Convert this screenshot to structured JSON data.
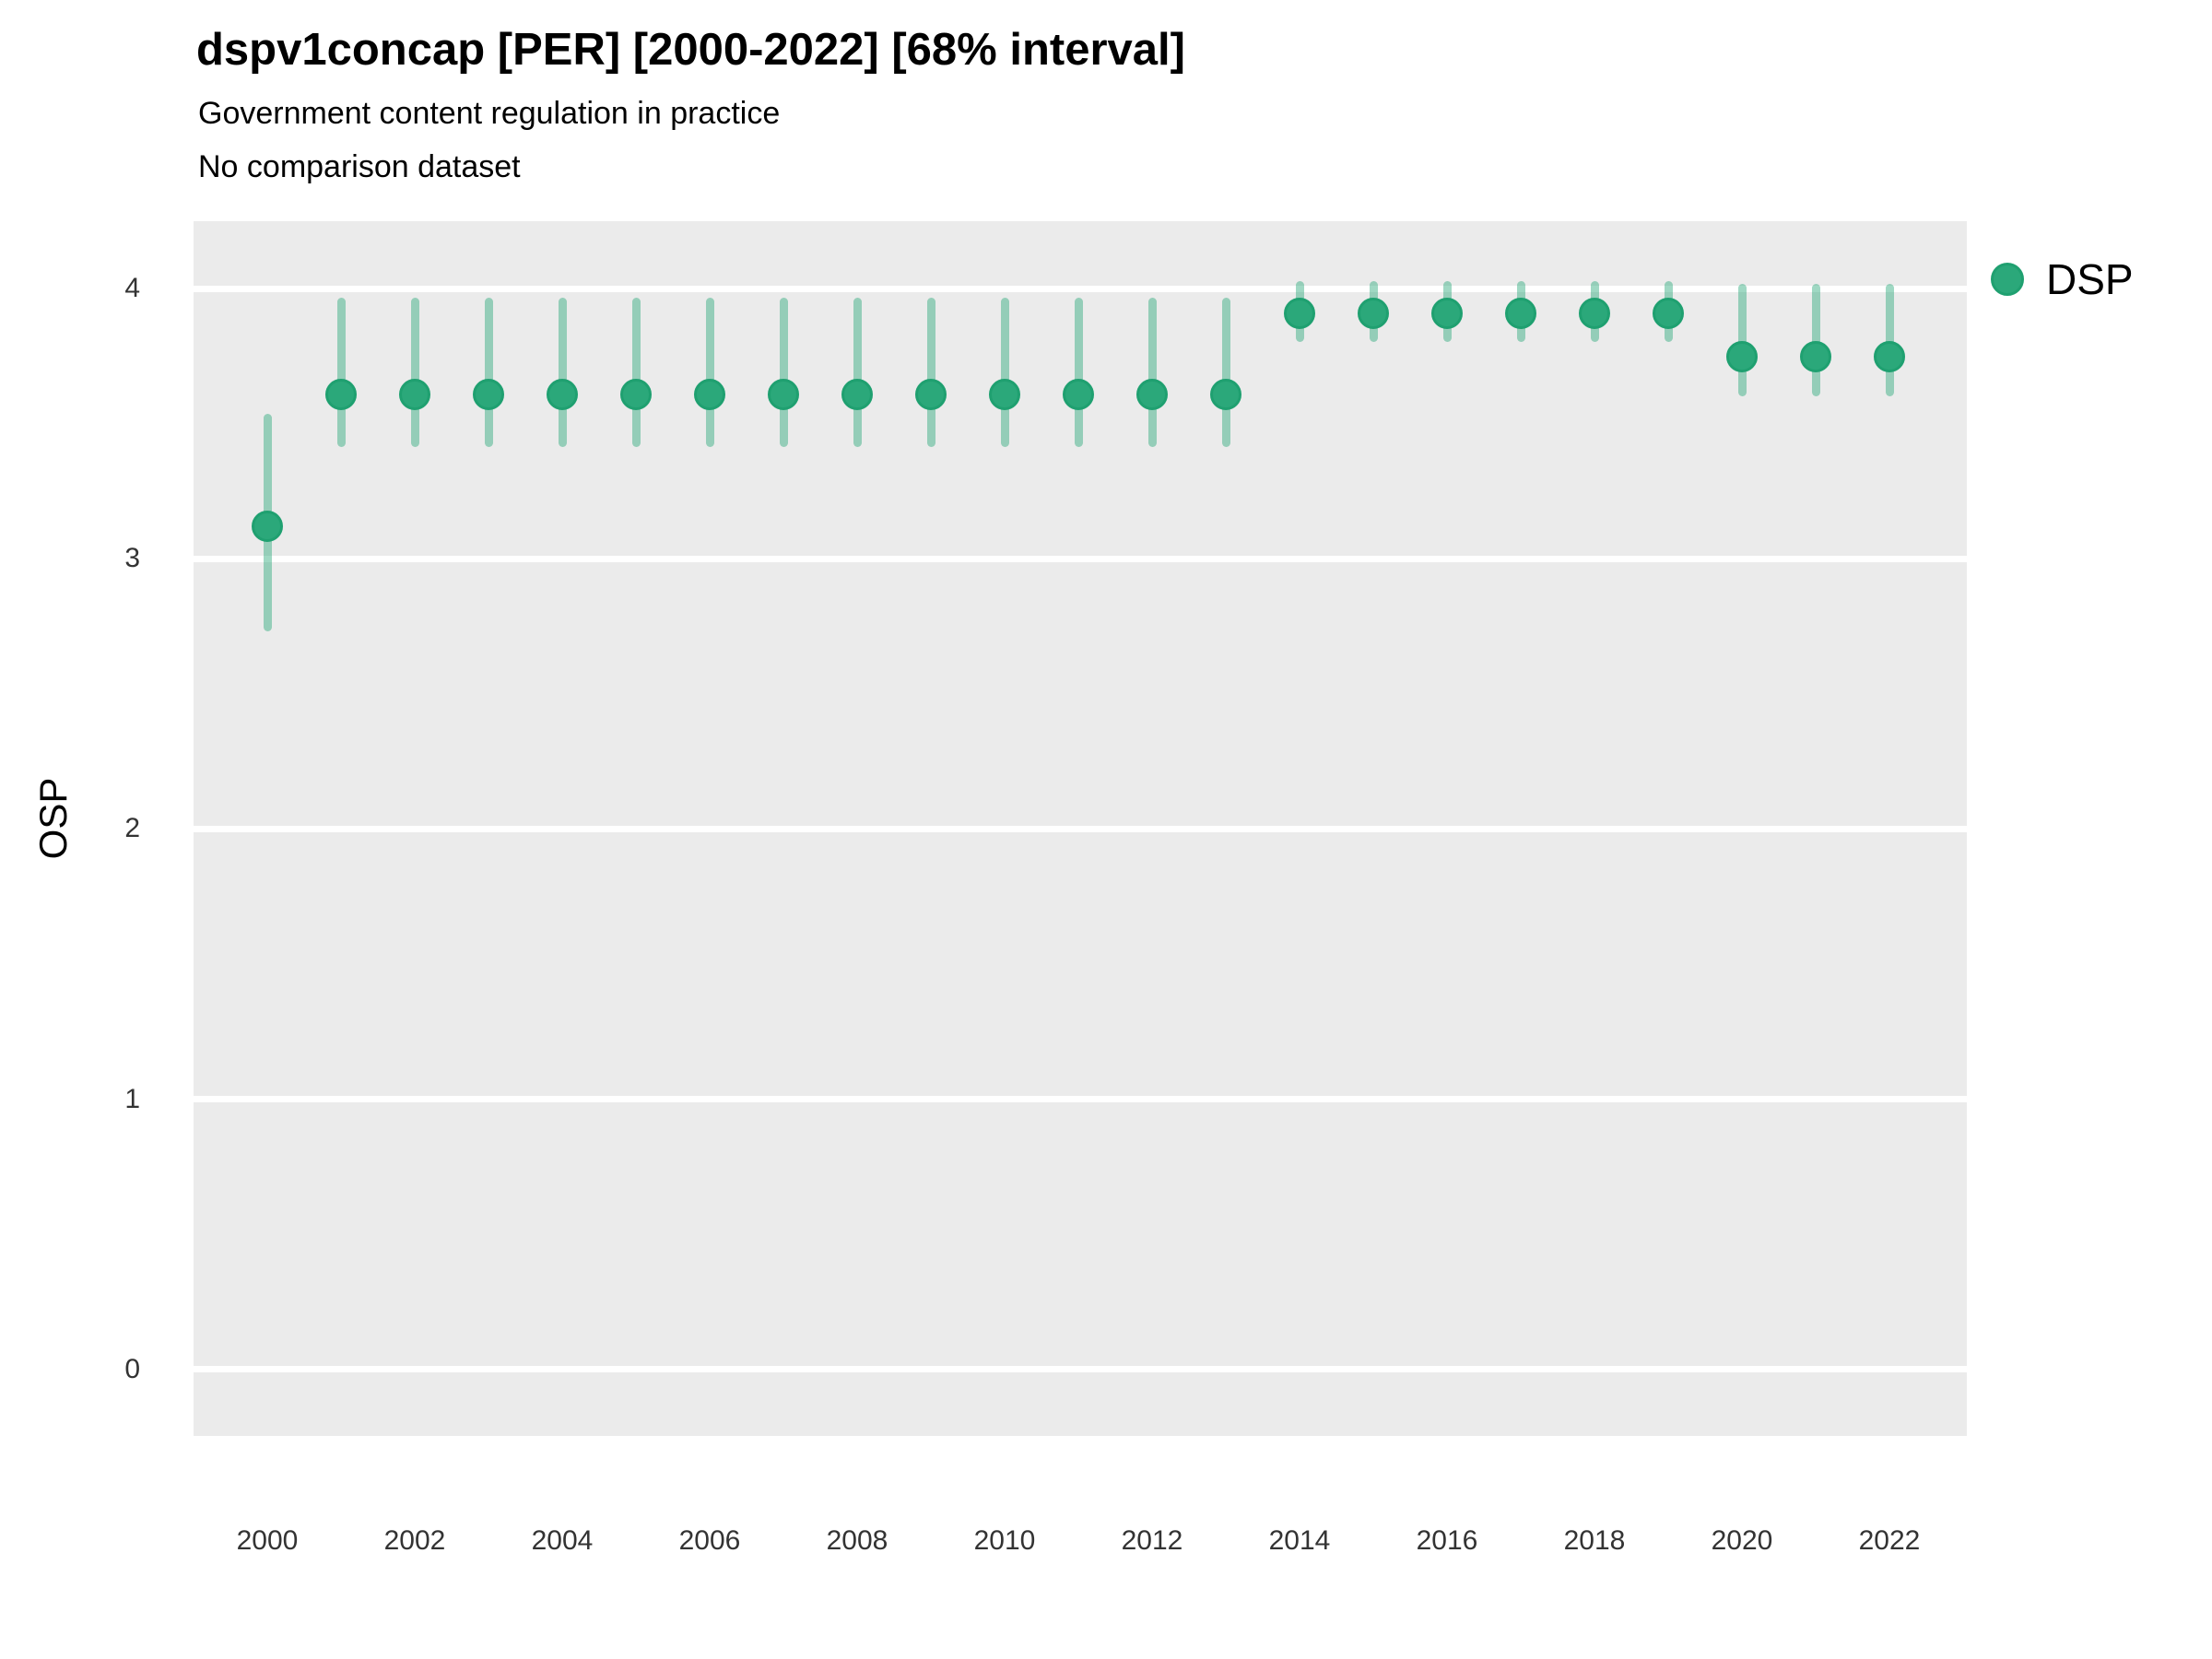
{
  "header": {
    "title": "dspv1concap [PER] [2000-2022] [68% interval]",
    "subtitle": "Government content regulation in practice",
    "subtitle2": "No comparison dataset"
  },
  "axes": {
    "y_label": "OSP",
    "y_ticks": [
      "4",
      "3",
      "2",
      "1",
      "0"
    ],
    "x_ticks": [
      "2000",
      "2002",
      "2004",
      "2006",
      "2008",
      "2010",
      "2012",
      "2014",
      "2016",
      "2018",
      "2020",
      "2022"
    ]
  },
  "legend": {
    "label": "DSP",
    "marker": "circle-icon"
  },
  "colors": {
    "point_fill": "#2BA87A",
    "point_ring": "#1FA070",
    "interval_bar": "rgba(43,168,122,0.45)",
    "panel_bg": "#EBEBEB",
    "gridline": "#FFFFFF",
    "tick_text": "#333333",
    "title_text": "#000000"
  },
  "chart_data": {
    "type": "scatter",
    "subtype": "pointrange",
    "title": "dspv1concap [PER] [2000-2022] [68% interval]",
    "subtitle": "Government content regulation in practice",
    "comparison": "No comparison dataset",
    "interval": "68%",
    "xlabel": "",
    "ylabel": "OSP",
    "ylim": [
      -0.25,
      4.25
    ],
    "xlim": [
      1999,
      2023
    ],
    "y_tick_values": [
      0,
      1,
      2,
      3,
      4
    ],
    "x_tick_values": [
      2000,
      2002,
      2004,
      2006,
      2008,
      2010,
      2012,
      2014,
      2016,
      2018,
      2020,
      2022
    ],
    "grid": true,
    "legend_position": "right",
    "x": [
      2000,
      2001,
      2002,
      2003,
      2004,
      2005,
      2006,
      2007,
      2008,
      2009,
      2010,
      2011,
      2012,
      2013,
      2014,
      2015,
      2016,
      2017,
      2018,
      2019,
      2020,
      2021,
      2022
    ],
    "series": [
      {
        "name": "DSP",
        "values": [
          3.12,
          3.61,
          3.61,
          3.61,
          3.61,
          3.61,
          3.61,
          3.61,
          3.61,
          3.61,
          3.61,
          3.61,
          3.61,
          3.61,
          3.91,
          3.91,
          3.91,
          3.91,
          3.91,
          3.91,
          3.75,
          3.75,
          3.75
        ],
        "lower": [
          2.75,
          3.43,
          3.43,
          3.43,
          3.43,
          3.43,
          3.43,
          3.43,
          3.43,
          3.43,
          3.43,
          3.43,
          3.43,
          3.43,
          3.82,
          3.82,
          3.82,
          3.82,
          3.82,
          3.82,
          3.62,
          3.62,
          3.62
        ],
        "upper": [
          3.52,
          3.95,
          3.95,
          3.95,
          3.95,
          3.95,
          3.95,
          3.95,
          3.95,
          3.95,
          3.95,
          3.95,
          3.95,
          3.95,
          4.01,
          4.01,
          4.01,
          4.01,
          4.01,
          4.01,
          4.0,
          4.0,
          4.0
        ]
      }
    ]
  }
}
